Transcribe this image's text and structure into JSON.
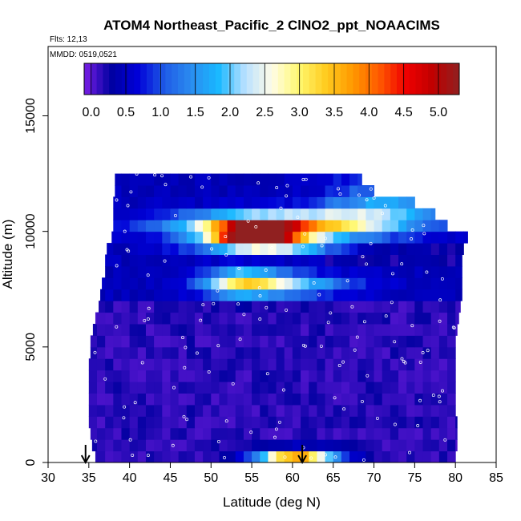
{
  "chart_data": {
    "type": "heatmap",
    "title": "ATOM4 Northeast_Pacific_2 ClNO2_ppt_NOAACIMS",
    "subtitle_flights": "Flts: 12,13",
    "subtitle_dates": "MMDD: 0519,0521",
    "xlabel": "Latitude (deg N)",
    "ylabel": "Altitude (m)",
    "xlim": [
      30,
      85
    ],
    "ylim": [
      0,
      18000
    ],
    "x_ticks": [
      "30",
      "35",
      "40",
      "45",
      "50",
      "55",
      "60",
      "65",
      "70",
      "75",
      "80",
      "85"
    ],
    "y_ticks": [
      "0",
      "5000",
      "10000",
      "15000"
    ],
    "colorbar": {
      "labels": [
        "0.0",
        "0.5",
        "1.0",
        "1.5",
        "2.0",
        "2.5",
        "3.0",
        "3.5",
        "4.0",
        "4.5",
        "5.0"
      ],
      "range": [
        -0.1,
        5.3
      ],
      "colors": [
        "#7a1fe6",
        "#0000a0",
        "#0000d8",
        "#1f5ce6",
        "#2b8cf0",
        "#18b8ff",
        "#b8e0ff",
        "#fffce8",
        "#fff870",
        "#ffcc20",
        "#ff9a00",
        "#ff5a00",
        "#f00000",
        "#c00000",
        "#902020"
      ]
    },
    "grid": false,
    "legend": "top colorbar",
    "arrows_latitude": [
      34.6,
      61.2
    ],
    "cross_section": {
      "lat_start": 35,
      "lat_end": 82,
      "lat_step": 1,
      "alt_start": 0,
      "alt_step": 500,
      "n_levels": 25,
      "row_extents": [
        [
          35.8,
          80.0
        ],
        [
          35.4,
          80.2
        ],
        [
          35.2,
          80.2
        ],
        [
          35.0,
          80.2
        ],
        [
          35.0,
          80.0
        ],
        [
          35.0,
          80.0
        ],
        [
          35.0,
          80.0
        ],
        [
          35.0,
          80.0
        ],
        [
          35.0,
          80.0
        ],
        [
          35.2,
          80.0
        ],
        [
          35.2,
          80.0
        ],
        [
          35.5,
          80.2
        ],
        [
          35.8,
          80.4
        ],
        [
          36.2,
          80.6
        ],
        [
          36.4,
          80.8
        ],
        [
          36.6,
          80.8
        ],
        [
          37.0,
          80.8
        ],
        [
          37.0,
          80.8
        ],
        [
          37.2,
          81.0
        ],
        [
          37.8,
          81.5
        ],
        [
          38.0,
          79.0
        ],
        [
          38.0,
          77.5
        ],
        [
          38.0,
          75.0
        ],
        [
          38.2,
          70.0
        ],
        [
          38.2,
          68.5
        ]
      ],
      "features": [
        {
          "lat": 60.5,
          "alt": 0,
          "value": 4.7,
          "lat_sigma": 3.5,
          "alt_sigma": 320
        },
        {
          "lat": 55.5,
          "alt": 9900,
          "value": 5.1,
          "lat_sigma": 3.6,
          "alt_sigma": 300
        },
        {
          "lat": 59.0,
          "alt": 10300,
          "value": 3.3,
          "lat_sigma": 9.0,
          "alt_sigma": 380
        },
        {
          "lat": 57.0,
          "alt": 9450,
          "value": 2.4,
          "lat_sigma": 6.0,
          "alt_sigma": 220
        },
        {
          "lat": 54.0,
          "alt": 7800,
          "value": 2.2,
          "lat_sigma": 3.4,
          "alt_sigma": 420
        },
        {
          "lat": 60.0,
          "alt": 7700,
          "value": 1.3,
          "lat_sigma": 5.5,
          "alt_sigma": 320
        },
        {
          "lat": 71.0,
          "alt": 11000,
          "value": 1.0,
          "lat_sigma": 5.0,
          "alt_sigma": 600
        }
      ]
    }
  }
}
